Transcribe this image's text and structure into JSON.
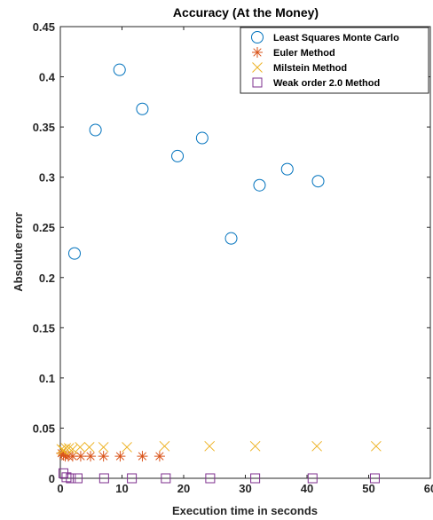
{
  "chart_data": {
    "type": "scatter",
    "title": "Accuracy (At the Money)",
    "xlabel": "Execution time in seconds",
    "ylabel": "Absolute error",
    "xlim": [
      0,
      60
    ],
    "ylim": [
      0,
      0.45
    ],
    "xticks": [
      "0",
      "10",
      "20",
      "30",
      "40",
      "50",
      "60"
    ],
    "yticks": [
      "0",
      "0.05",
      "0.1",
      "0.15",
      "0.2",
      "0.25",
      "0.3",
      "0.35",
      "0.4",
      "0.45"
    ],
    "legend_position": "top-right",
    "grid": false,
    "series": [
      {
        "name": "Least Squares Monte Carlo",
        "marker": "circle",
        "color": "#0072BD",
        "points": [
          [
            2.3,
            0.224
          ],
          [
            5.7,
            0.347
          ],
          [
            9.6,
            0.407
          ],
          [
            13.3,
            0.368
          ],
          [
            19.0,
            0.321
          ],
          [
            23.0,
            0.339
          ],
          [
            27.7,
            0.239
          ],
          [
            32.3,
            0.292
          ],
          [
            36.8,
            0.308
          ],
          [
            41.8,
            0.296
          ]
        ]
      },
      {
        "name": "Euler Method",
        "marker": "asterisk",
        "color": "#D95319",
        "points": [
          [
            0.2,
            0.025
          ],
          [
            0.5,
            0.023
          ],
          [
            0.8,
            0.022
          ],
          [
            1.3,
            0.022
          ],
          [
            2.0,
            0.022
          ],
          [
            3.3,
            0.022
          ],
          [
            4.9,
            0.022
          ],
          [
            7.0,
            0.022
          ],
          [
            9.7,
            0.022
          ],
          [
            13.3,
            0.022
          ],
          [
            16.1,
            0.022
          ]
        ]
      },
      {
        "name": "Milstein Method",
        "marker": "x",
        "color": "#EDB120",
        "points": [
          [
            0.2,
            0.029
          ],
          [
            0.5,
            0.028
          ],
          [
            0.9,
            0.03
          ],
          [
            1.4,
            0.03
          ],
          [
            2.0,
            0.029
          ],
          [
            3.2,
            0.031
          ],
          [
            4.7,
            0.031
          ],
          [
            7.0,
            0.031
          ],
          [
            10.8,
            0.031
          ],
          [
            16.9,
            0.032
          ],
          [
            24.2,
            0.032
          ],
          [
            31.6,
            0.032
          ],
          [
            41.6,
            0.032
          ],
          [
            51.2,
            0.032
          ]
        ]
      },
      {
        "name": "Weak order 2.0 Method",
        "marker": "square",
        "color": "#7E2F8E",
        "points": [
          [
            0.5,
            0.005
          ],
          [
            1.0,
            0.001
          ],
          [
            1.7,
            0.0
          ],
          [
            2.8,
            0.0
          ],
          [
            7.1,
            0.0
          ],
          [
            11.6,
            0.0
          ],
          [
            17.1,
            0.0
          ],
          [
            24.3,
            0.0
          ],
          [
            31.6,
            0.0
          ],
          [
            40.9,
            0.0
          ],
          [
            51.0,
            0.0
          ]
        ]
      }
    ]
  }
}
